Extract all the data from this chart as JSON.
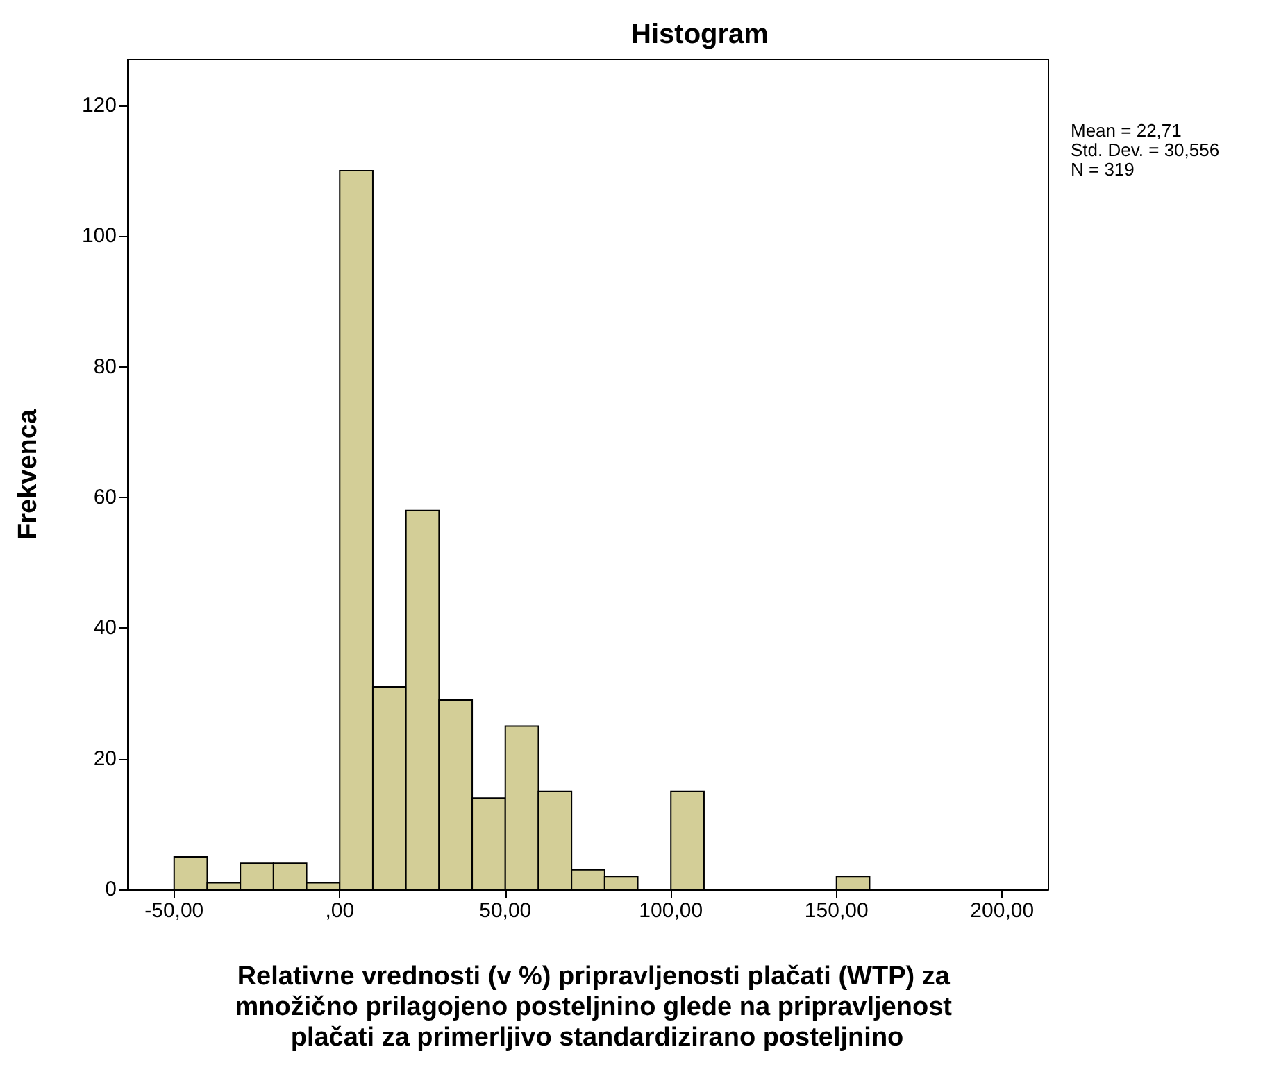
{
  "chart_data": {
    "type": "histogram",
    "title": "Histogram",
    "xlabel": "Relativne vrednosti (v %) pripravljenosti plačati (WTP) za množično prilagojeno posteljnino glede na pripravljenost plačati za primerljivo standardizirano posteljnino",
    "ylabel": "Frekvenca",
    "annotations": [
      "Mean = 22,71",
      "Std. Dev. = 30,556",
      "N = 319"
    ],
    "bins": [
      -50,
      -40,
      -30,
      -20,
      -10,
      0,
      10,
      20,
      30,
      40,
      50,
      60,
      70,
      80,
      90,
      100,
      110,
      120,
      130,
      140,
      150,
      160
    ],
    "values": [
      5,
      1,
      4,
      4,
      1,
      110,
      31,
      58,
      29,
      14,
      25,
      15,
      3,
      2,
      0,
      15,
      0,
      0,
      0,
      0,
      2
    ],
    "color": "#d3ce97",
    "xlim": [
      -64,
      214
    ],
    "xticks": [
      {
        "value": -50,
        "label": "-50,00"
      },
      {
        "value": 0,
        "label": ",00"
      },
      {
        "value": 50,
        "label": "50,00"
      },
      {
        "value": 100,
        "label": "100,00"
      },
      {
        "value": 150,
        "label": "150,00"
      },
      {
        "value": 200,
        "label": "200,00"
      }
    ],
    "ylim": [
      0,
      127
    ],
    "yticks": [
      0,
      20,
      40,
      60,
      80,
      100,
      120
    ],
    "grid": false
  }
}
